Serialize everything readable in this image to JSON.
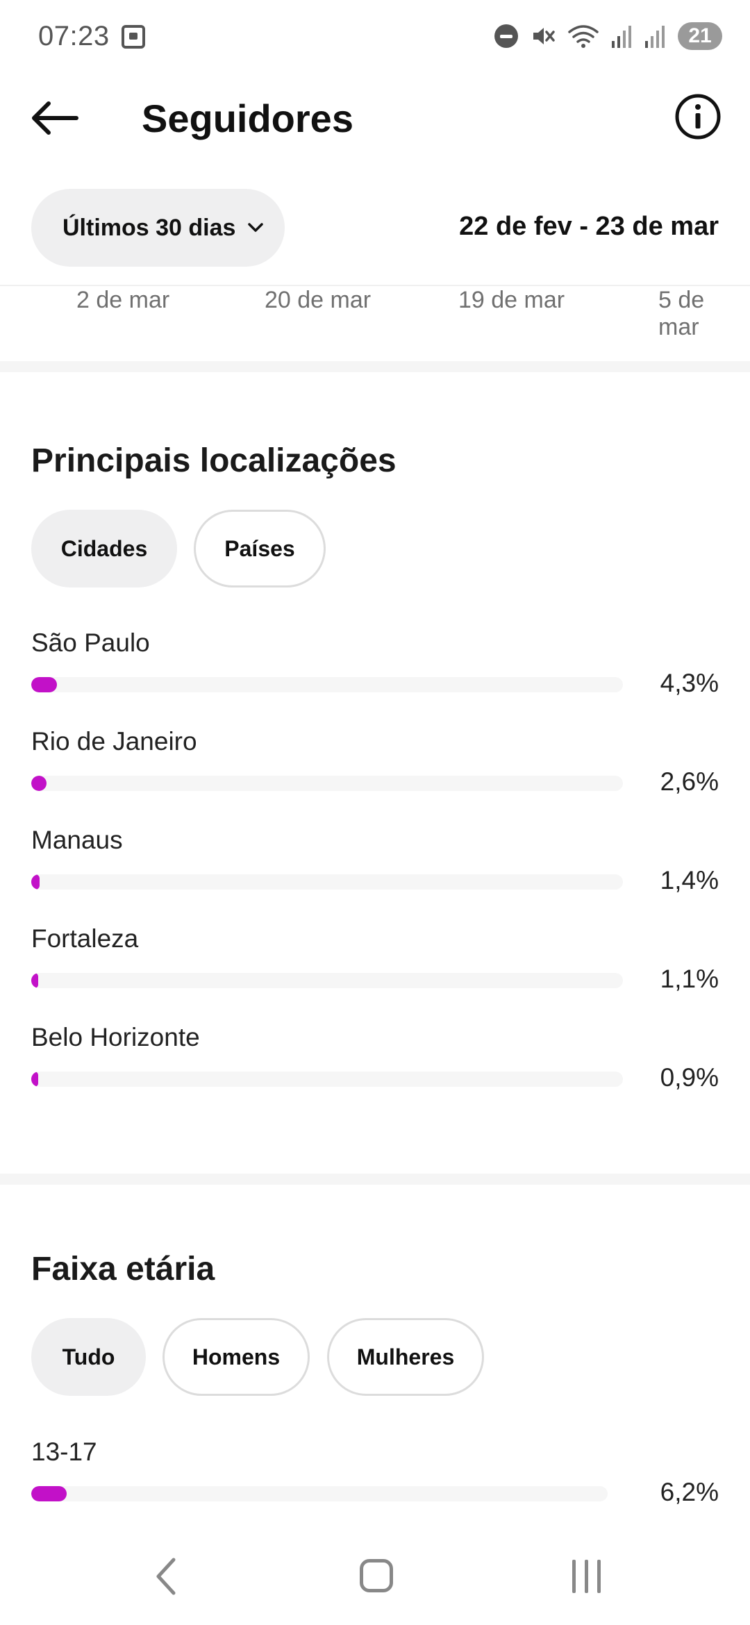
{
  "status_bar": {
    "time": "07:23",
    "battery": "21",
    "icons": [
      "screenshot-icon",
      "do-not-disturb-icon",
      "mute-icon",
      "wifi-icon",
      "signal-icon",
      "signal-icon"
    ]
  },
  "header": {
    "title": "Seguidores",
    "back_icon": "arrow-left-icon",
    "info_icon": "info-circle-icon"
  },
  "date_filter": {
    "selected": "Últimos 30 dias",
    "range": "22 de fev - 23 de mar"
  },
  "chart_axis_labels": [
    "2 de mar",
    "20 de mar",
    "19 de mar",
    "5 de mar"
  ],
  "locations": {
    "title": "Principais localizações",
    "tabs": [
      {
        "label": "Cidades",
        "active": true
      },
      {
        "label": "Países",
        "active": false
      }
    ],
    "rows": [
      {
        "label": "São Paulo",
        "value": "4,3%",
        "percent": 4.3
      },
      {
        "label": "Rio de Janeiro",
        "value": "2,6%",
        "percent": 2.6
      },
      {
        "label": "Manaus",
        "value": "1,4%",
        "percent": 1.4
      },
      {
        "label": "Fortaleza",
        "value": "1,1%",
        "percent": 1.1
      },
      {
        "label": "Belo Horizonte",
        "value": "0,9%",
        "percent": 0.9
      }
    ]
  },
  "age": {
    "title": "Faixa etária",
    "tabs": [
      {
        "label": "Tudo",
        "active": true
      },
      {
        "label": "Homens",
        "active": false
      },
      {
        "label": "Mulheres",
        "active": false
      }
    ],
    "rows": [
      {
        "label": "13-17",
        "value": "6,2%",
        "percent": 6.2
      }
    ]
  },
  "colors": {
    "accent": "#c211c8",
    "chip_bg": "#efeff0"
  }
}
